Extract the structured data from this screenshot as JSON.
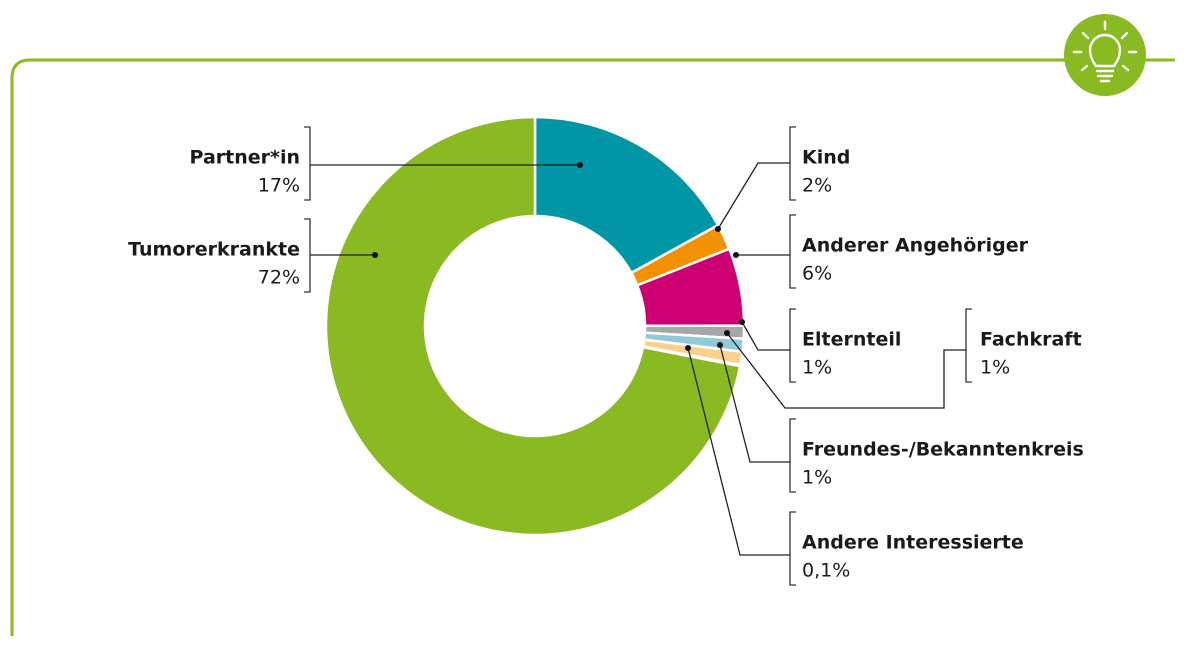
{
  "chart_data": {
    "type": "pie",
    "categories": [
      "Partner*in",
      "Kind",
      "Anderer Angehöriger",
      "Elternteil",
      "Fachkraft",
      "Freundes-/Bekanntenkreis",
      "Andere Interessierte",
      "Tumorerkrankte"
    ],
    "values": [
      17,
      2,
      6,
      1,
      1,
      1,
      0.1,
      72
    ],
    "value_labels": [
      "17%",
      "2%",
      "6%",
      "1%",
      "1%",
      "1%",
      "0,1%",
      "72%"
    ],
    "colors": [
      "#0096a5",
      "#f39200",
      "#cc0072",
      "#a6a6a6",
      "#8fcbd6",
      "#fbd08a",
      "#fde6c4",
      "#8aba21"
    ]
  }
}
